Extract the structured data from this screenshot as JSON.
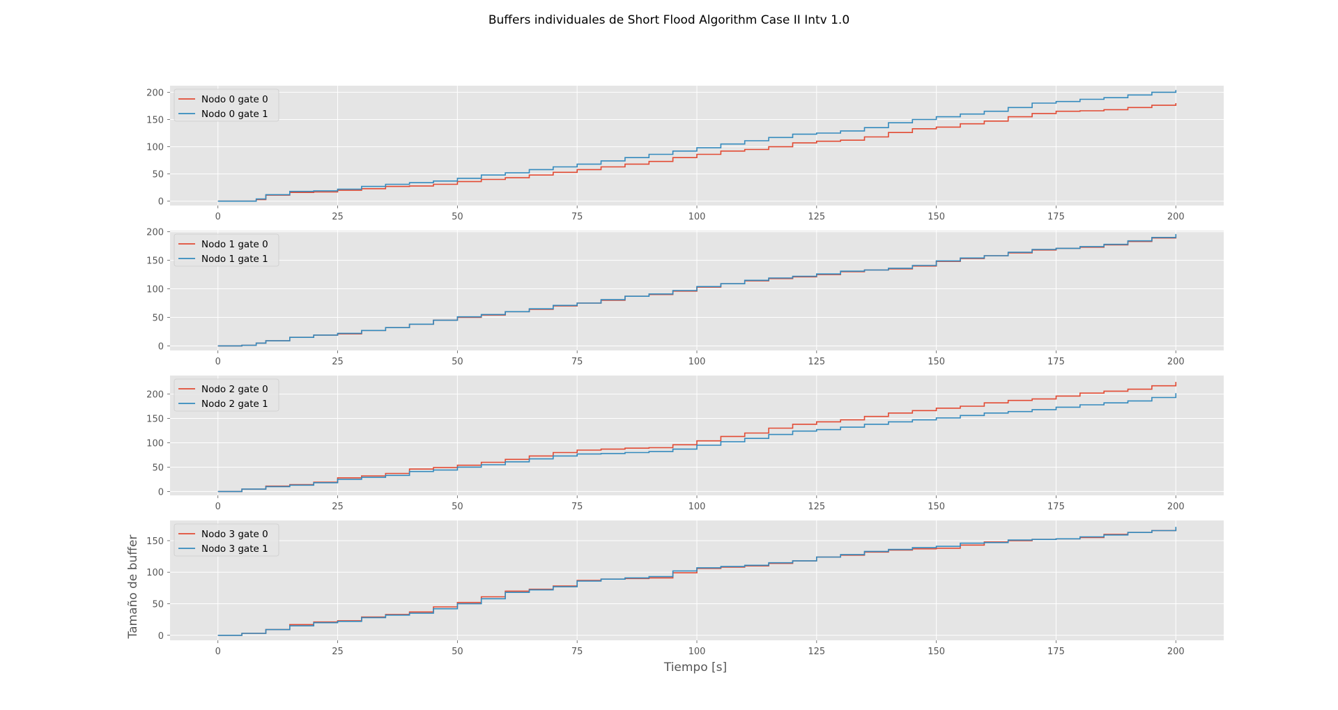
{
  "chart_data": {
    "type": "line",
    "title": "Buffers individuales de Short Flood Algorithm Case II Intv 1.0",
    "xlabel": "Tiempo [s]",
    "ylabel": "Tamaño de buffer",
    "xlim": [
      -10,
      210
    ],
    "x_ticks": [
      0,
      25,
      50,
      75,
      100,
      125,
      150,
      175,
      200
    ],
    "grid": true,
    "legend_placement": "upper-left",
    "style": {
      "axes_background": "#E5E5E5",
      "grid_color": "#FFFFFF",
      "series_colors": [
        "#E24A33",
        "#348ABD"
      ]
    },
    "subplots": [
      {
        "ylim": [
          -8,
          212
        ],
        "y_ticks": [
          0,
          50,
          100,
          150,
          200
        ],
        "series": [
          {
            "name": "Nodo 0 gate 0",
            "x": [
              0,
              8,
              10,
              15,
              20,
              25,
              30,
              35,
              40,
              45,
              50,
              55,
              60,
              65,
              70,
              75,
              80,
              85,
              90,
              95,
              100,
              105,
              110,
              115,
              120,
              125,
              130,
              135,
              140,
              145,
              150,
              155,
              160,
              165,
              170,
              175,
              180,
              185,
              190,
              195,
              200
            ],
            "y": [
              0,
              3,
              11,
              16,
              17,
              20,
              23,
              27,
              28,
              31,
              36,
              40,
              43,
              48,
              53,
              58,
              63,
              68,
              73,
              80,
              86,
              92,
              95,
              100,
              107,
              110,
              112,
              118,
              126,
              133,
              136,
              142,
              147,
              155,
              161,
              165,
              166,
              168,
              172,
              176,
              180
            ]
          },
          {
            "name": "Nodo 0 gate 1",
            "x": [
              0,
              8,
              10,
              15,
              20,
              25,
              30,
              35,
              40,
              45,
              50,
              55,
              60,
              65,
              70,
              75,
              80,
              85,
              90,
              95,
              100,
              105,
              110,
              115,
              120,
              125,
              130,
              135,
              140,
              145,
              150,
              155,
              160,
              165,
              170,
              175,
              180,
              185,
              190,
              195,
              200
            ],
            "y": [
              0,
              4,
              12,
              18,
              19,
              22,
              27,
              31,
              34,
              37,
              42,
              48,
              52,
              58,
              63,
              68,
              74,
              80,
              86,
              92,
              98,
              105,
              111,
              117,
              123,
              125,
              129,
              135,
              144,
              150,
              155,
              160,
              165,
              172,
              180,
              183,
              187,
              190,
              195,
              200,
              204
            ]
          }
        ]
      },
      {
        "ylim": [
          -8,
          202
        ],
        "y_ticks": [
          0,
          50,
          100,
          150,
          200
        ],
        "series": [
          {
            "name": "Nodo 1 gate 0",
            "x": [
              0,
              5,
              8,
              10,
              15,
              20,
              25,
              30,
              35,
              40,
              45,
              50,
              55,
              60,
              65,
              70,
              75,
              80,
              85,
              90,
              95,
              100,
              105,
              110,
              115,
              120,
              125,
              130,
              135,
              140,
              145,
              150,
              155,
              160,
              165,
              170,
              175,
              180,
              185,
              190,
              195,
              200
            ],
            "y": [
              0,
              1,
              5,
              9,
              15,
              19,
              21,
              27,
              32,
              38,
              45,
              50,
              54,
              60,
              64,
              70,
              75,
              80,
              87,
              90,
              96,
              103,
              109,
              114,
              118,
              121,
              125,
              130,
              133,
              135,
              140,
              148,
              153,
              158,
              163,
              168,
              171,
              173,
              177,
              183,
              189,
              195
            ]
          },
          {
            "name": "Nodo 1 gate 1",
            "x": [
              0,
              5,
              8,
              10,
              15,
              20,
              25,
              30,
              35,
              40,
              45,
              50,
              55,
              60,
              65,
              70,
              75,
              80,
              85,
              90,
              95,
              100,
              105,
              110,
              115,
              120,
              125,
              130,
              135,
              140,
              145,
              150,
              155,
              160,
              165,
              170,
              175,
              180,
              185,
              190,
              195,
              200
            ],
            "y": [
              0,
              1,
              5,
              9,
              15,
              19,
              22,
              27,
              32,
              38,
              45,
              51,
              55,
              60,
              65,
              71,
              75,
              81,
              87,
              91,
              97,
              104,
              109,
              115,
              119,
              122,
              126,
              131,
              133,
              136,
              141,
              149,
              154,
              158,
              164,
              169,
              171,
              174,
              178,
              184,
              190,
              196
            ]
          }
        ]
      },
      {
        "ylim": [
          -8,
          238
        ],
        "y_ticks": [
          0,
          50,
          100,
          150,
          200
        ],
        "series": [
          {
            "name": "Nodo 2 gate 0",
            "x": [
              0,
              5,
              10,
              15,
              20,
              25,
              30,
              35,
              40,
              45,
              50,
              55,
              60,
              65,
              70,
              75,
              80,
              85,
              90,
              95,
              100,
              105,
              110,
              115,
              120,
              125,
              130,
              135,
              140,
              145,
              150,
              155,
              160,
              165,
              170,
              175,
              180,
              185,
              190,
              195,
              200
            ],
            "y": [
              0,
              5,
              11,
              14,
              19,
              28,
              32,
              37,
              46,
              49,
              54,
              60,
              66,
              73,
              80,
              85,
              87,
              89,
              90,
              96,
              104,
              113,
              120,
              130,
              138,
              143,
              147,
              154,
              161,
              166,
              171,
              175,
              182,
              187,
              190,
              196,
              202,
              206,
              210,
              217,
              225
            ]
          },
          {
            "name": "Nodo 2 gate 1",
            "x": [
              0,
              5,
              10,
              15,
              20,
              25,
              30,
              35,
              40,
              45,
              50,
              55,
              60,
              65,
              70,
              75,
              80,
              85,
              90,
              95,
              100,
              105,
              110,
              115,
              120,
              125,
              130,
              135,
              140,
              145,
              150,
              155,
              160,
              165,
              170,
              175,
              180,
              185,
              190,
              195,
              200
            ],
            "y": [
              0,
              5,
              10,
              13,
              18,
              25,
              29,
              33,
              41,
              44,
              50,
              55,
              61,
              67,
              73,
              77,
              78,
              80,
              82,
              87,
              95,
              102,
              109,
              117,
              124,
              127,
              132,
              138,
              143,
              147,
              151,
              156,
              161,
              164,
              168,
              173,
              178,
              182,
              186,
              193,
              202
            ]
          }
        ]
      },
      {
        "ylim": [
          -8,
          182
        ],
        "y_ticks": [
          0,
          50,
          100,
          150
        ],
        "series": [
          {
            "name": "Nodo 3 gate 0",
            "x": [
              0,
              5,
              10,
              15,
              20,
              25,
              30,
              35,
              40,
              45,
              50,
              55,
              60,
              65,
              70,
              75,
              80,
              85,
              90,
              95,
              100,
              105,
              110,
              115,
              120,
              125,
              130,
              135,
              140,
              145,
              150,
              155,
              160,
              165,
              170,
              175,
              180,
              185,
              190,
              195,
              200
            ],
            "y": [
              0,
              3,
              9,
              17,
              21,
              23,
              29,
              33,
              37,
              45,
              52,
              61,
              70,
              73,
              78,
              87,
              89,
              90,
              91,
              99,
              106,
              108,
              110,
              114,
              118,
              124,
              127,
              132,
              135,
              137,
              138,
              143,
              148,
              150,
              152,
              153,
              155,
              160,
              163,
              166,
              170
            ]
          },
          {
            "name": "Nodo 3 gate 1",
            "x": [
              0,
              5,
              10,
              15,
              20,
              25,
              30,
              35,
              40,
              45,
              50,
              55,
              60,
              65,
              70,
              75,
              80,
              85,
              90,
              95,
              100,
              105,
              110,
              115,
              120,
              125,
              130,
              135,
              140,
              145,
              150,
              155,
              160,
              165,
              170,
              175,
              180,
              185,
              190,
              195,
              200
            ],
            "y": [
              0,
              3,
              9,
              15,
              20,
              22,
              28,
              32,
              35,
              42,
              50,
              58,
              68,
              72,
              77,
              86,
              89,
              91,
              93,
              102,
              107,
              109,
              111,
              115,
              118,
              124,
              128,
              133,
              136,
              139,
              141,
              146,
              147,
              151,
              152,
              153,
              156,
              159,
              163,
              166,
              172
            ]
          }
        ]
      }
    ]
  }
}
